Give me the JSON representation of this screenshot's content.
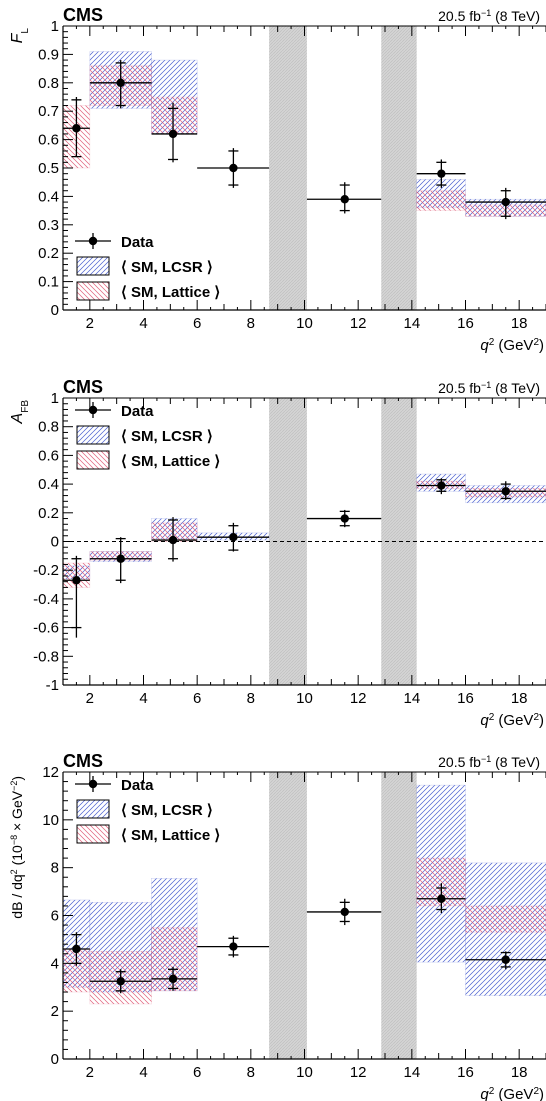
{
  "colors": {
    "data": "#000000",
    "lcsr": "#4a5fd0",
    "lattice": "#e0607a",
    "veto": "#c8c8c8",
    "frame": "#000000"
  },
  "chart_data": [
    {
      "type": "scatter",
      "id": "fl",
      "experiment": "CMS",
      "lumi": "20.5 fb",
      "lumi_exp": "−1",
      "energy": "(8 TeV)",
      "ylabel_main": "F",
      "ylabel_sub": "L",
      "xlabel_main": "q",
      "xlabel_sup": "2",
      "xlabel_unit": "(GeV",
      "xlabel_unit_sup": "2",
      "xlabel_close": ")",
      "xlim": [
        1,
        19
      ],
      "ylim": [
        0,
        1
      ],
      "x_ticks": [
        2,
        4,
        6,
        8,
        10,
        12,
        14,
        16,
        18
      ],
      "y_ticks": [
        0,
        0.1,
        0.2,
        0.3,
        0.4,
        0.5,
        0.6,
        0.7,
        0.8,
        0.9,
        1
      ],
      "y_tick_labels": [
        "0",
        "0.1",
        "0.2",
        "0.3",
        "0.4",
        "0.5",
        "0.6",
        "0.7",
        "0.8",
        "0.9",
        "1"
      ],
      "zero_line": false,
      "legend": {
        "position": "bottom-left",
        "entries": [
          "Data",
          "⟨ SM, LCSR ⟩",
          "⟨ SM, Lattice ⟩"
        ]
      },
      "veto_bands": [
        [
          8.68,
          10.09
        ],
        [
          12.86,
          14.18
        ]
      ],
      "data": [
        {
          "x": 1.5,
          "xlo": 1,
          "xhi": 2,
          "y": 0.64,
          "stat": [
            0.54,
            0.74
          ],
          "tot": [
            0.54,
            0.75
          ]
        },
        {
          "x": 3.15,
          "xlo": 2,
          "xhi": 4.3,
          "y": 0.8,
          "stat": [
            0.72,
            0.87
          ],
          "tot": [
            0.71,
            0.88
          ]
        },
        {
          "x": 5.1,
          "xlo": 4.3,
          "xhi": 6,
          "y": 0.62,
          "stat": [
            0.53,
            0.71
          ],
          "tot": [
            0.52,
            0.73
          ]
        },
        {
          "x": 7.35,
          "xlo": 6,
          "xhi": 8.68,
          "y": 0.5,
          "stat": [
            0.44,
            0.56
          ],
          "tot": [
            0.43,
            0.57
          ]
        },
        {
          "x": 11.5,
          "xlo": 10.09,
          "xhi": 12.86,
          "y": 0.39,
          "stat": [
            0.35,
            0.44
          ],
          "tot": [
            0.34,
            0.45
          ]
        },
        {
          "x": 15.1,
          "xlo": 14.18,
          "xhi": 16,
          "y": 0.48,
          "stat": [
            0.44,
            0.52
          ],
          "tot": [
            0.43,
            0.53
          ]
        },
        {
          "x": 17.5,
          "xlo": 16,
          "xhi": 19,
          "y": 0.38,
          "stat": [
            0.33,
            0.42
          ],
          "tot": [
            0.32,
            0.43
          ]
        }
      ],
      "lcsr": [
        {
          "x": [
            2,
            4.3
          ],
          "y": [
            0.71,
            0.91
          ]
        },
        {
          "x": [
            4.3,
            6
          ],
          "y": [
            0.62,
            0.88
          ]
        },
        {
          "x": [
            14.18,
            16
          ],
          "y": [
            0.36,
            0.46
          ]
        },
        {
          "x": [
            16,
            19
          ],
          "y": [
            0.33,
            0.39
          ]
        }
      ],
      "lattice": [
        {
          "x": [
            1,
            2
          ],
          "y": [
            0.5,
            0.72
          ]
        },
        {
          "x": [
            2,
            4.3
          ],
          "y": [
            0.72,
            0.86
          ]
        },
        {
          "x": [
            4.3,
            6
          ],
          "y": [
            0.62,
            0.75
          ]
        },
        {
          "x": [
            14.18,
            16
          ],
          "y": [
            0.35,
            0.42
          ]
        },
        {
          "x": [
            16,
            19
          ],
          "y": [
            0.33,
            0.37
          ]
        }
      ]
    },
    {
      "type": "scatter",
      "id": "afb",
      "experiment": "CMS",
      "lumi": "20.5 fb",
      "lumi_exp": "−1",
      "energy": "(8 TeV)",
      "ylabel_main": "A",
      "ylabel_sub": "FB",
      "xlabel_main": "q",
      "xlabel_sup": "2",
      "xlabel_unit": "(GeV",
      "xlabel_unit_sup": "2",
      "xlabel_close": ")",
      "xlim": [
        1,
        19
      ],
      "ylim": [
        -1,
        1
      ],
      "x_ticks": [
        2,
        4,
        6,
        8,
        10,
        12,
        14,
        16,
        18
      ],
      "y_ticks": [
        -1,
        -0.8,
        -0.6,
        -0.4,
        -0.2,
        0,
        0.2,
        0.4,
        0.6,
        0.8,
        1
      ],
      "y_tick_labels": [
        "-1",
        "-0.8",
        "-0.6",
        "-0.4",
        "-0.2",
        "0",
        "0.2",
        "0.4",
        "0.6",
        "0.8",
        "1"
      ],
      "zero_line": true,
      "legend": {
        "position": "top-left",
        "entries": [
          "Data",
          "⟨ SM, LCSR ⟩",
          "⟨ SM, Lattice ⟩"
        ]
      },
      "veto_bands": [
        [
          8.68,
          10.09
        ],
        [
          12.86,
          14.18
        ]
      ],
      "data": [
        {
          "x": 1.5,
          "xlo": 1,
          "xhi": 2,
          "y": -0.27,
          "stat": [
            -0.6,
            -0.12
          ],
          "tot": [
            -0.67,
            -0.1
          ]
        },
        {
          "x": 3.15,
          "xlo": 2,
          "xhi": 4.3,
          "y": -0.12,
          "stat": [
            -0.27,
            0.02
          ],
          "tot": [
            -0.29,
            0.03
          ]
        },
        {
          "x": 5.1,
          "xlo": 4.3,
          "xhi": 6,
          "y": 0.01,
          "stat": [
            -0.12,
            0.15
          ],
          "tot": [
            -0.14,
            0.17
          ]
        },
        {
          "x": 7.35,
          "xlo": 6,
          "xhi": 8.68,
          "y": 0.03,
          "stat": [
            -0.06,
            0.11
          ],
          "tot": [
            -0.07,
            0.13
          ]
        },
        {
          "x": 11.5,
          "xlo": 10.09,
          "xhi": 12.86,
          "y": 0.16,
          "stat": [
            0.11,
            0.21
          ],
          "tot": [
            0.1,
            0.22
          ]
        },
        {
          "x": 15.1,
          "xlo": 14.18,
          "xhi": 16,
          "y": 0.39,
          "stat": [
            0.35,
            0.43
          ],
          "tot": [
            0.33,
            0.44
          ]
        },
        {
          "x": 17.5,
          "xlo": 16,
          "xhi": 19,
          "y": 0.35,
          "stat": [
            0.3,
            0.4
          ],
          "tot": [
            0.29,
            0.42
          ]
        }
      ],
      "lcsr": [
        {
          "x": [
            1,
            2
          ],
          "y": [
            -0.26,
            -0.17
          ]
        },
        {
          "x": [
            2,
            4.3
          ],
          "y": [
            -0.14,
            -0.07
          ]
        },
        {
          "x": [
            4.3,
            6
          ],
          "y": [
            0.02,
            0.16
          ]
        },
        {
          "x": [
            6,
            8.68
          ],
          "y": [
            0.01,
            0.06
          ]
        },
        {
          "x": [
            14.18,
            16
          ],
          "y": [
            0.35,
            0.47
          ]
        },
        {
          "x": [
            16,
            19
          ],
          "y": [
            0.27,
            0.39
          ]
        }
      ],
      "lattice": [
        {
          "x": [
            1,
            2
          ],
          "y": [
            -0.32,
            -0.15
          ]
        },
        {
          "x": [
            2,
            4.3
          ],
          "y": [
            -0.13,
            -0.07
          ]
        },
        {
          "x": [
            4.3,
            6
          ],
          "y": [
            0.0,
            0.13
          ]
        },
        {
          "x": [
            14.18,
            16
          ],
          "y": [
            0.37,
            0.42
          ]
        },
        {
          "x": [
            16,
            19
          ],
          "y": [
            0.31,
            0.37
          ]
        }
      ]
    },
    {
      "type": "scatter",
      "id": "dbdq2",
      "experiment": "CMS",
      "lumi": "20.5 fb",
      "lumi_exp": "−1",
      "energy": "(8 TeV)",
      "ylabel_main": "dB / dq",
      "ylabel_sup": "2",
      "ylabel_unit": " (10",
      "ylabel_unit_sup": "−8",
      "ylabel_unit_rest": " × GeV",
      "ylabel_unit_sup2": "−2",
      "ylabel_close": ")",
      "xlabel_main": "q",
      "xlabel_sup": "2",
      "xlabel_unit": "(GeV",
      "xlabel_unit_sup": "2",
      "xlabel_close": ")",
      "xlim": [
        1,
        19
      ],
      "ylim": [
        0,
        12
      ],
      "x_ticks": [
        2,
        4,
        6,
        8,
        10,
        12,
        14,
        16,
        18
      ],
      "y_ticks": [
        0,
        2,
        4,
        6,
        8,
        10,
        12
      ],
      "y_tick_labels": [
        "0",
        "2",
        "4",
        "6",
        "8",
        "10",
        "12"
      ],
      "zero_line": false,
      "legend": {
        "position": "top-left",
        "entries": [
          "Data",
          "⟨ SM, LCSR ⟩",
          "⟨ SM, Lattice ⟩"
        ]
      },
      "veto_bands": [
        [
          8.68,
          10.09
        ],
        [
          12.86,
          14.18
        ]
      ],
      "data": [
        {
          "x": 1.5,
          "xlo": 1,
          "xhi": 2,
          "y": 4.6,
          "stat": [
            4.0,
            5.2
          ],
          "tot": [
            3.9,
            5.3
          ]
        },
        {
          "x": 3.15,
          "xlo": 2,
          "xhi": 4.3,
          "y": 3.25,
          "stat": [
            2.85,
            3.65
          ],
          "tot": [
            2.75,
            3.75
          ]
        },
        {
          "x": 5.1,
          "xlo": 4.3,
          "xhi": 6,
          "y": 3.35,
          "stat": [
            2.95,
            3.75
          ],
          "tot": [
            2.85,
            3.85
          ]
        },
        {
          "x": 7.35,
          "xlo": 6,
          "xhi": 8.68,
          "y": 4.7,
          "stat": [
            4.35,
            5.05
          ],
          "tot": [
            4.25,
            5.15
          ]
        },
        {
          "x": 11.5,
          "xlo": 10.09,
          "xhi": 12.86,
          "y": 6.15,
          "stat": [
            5.75,
            6.55
          ],
          "tot": [
            5.6,
            6.7
          ]
        },
        {
          "x": 15.1,
          "xlo": 14.18,
          "xhi": 16,
          "y": 6.7,
          "stat": [
            6.25,
            7.15
          ],
          "tot": [
            6.1,
            7.35
          ]
        },
        {
          "x": 17.5,
          "xlo": 16,
          "xhi": 19,
          "y": 4.15,
          "stat": [
            3.85,
            4.45
          ],
          "tot": [
            3.75,
            4.5
          ]
        }
      ],
      "lcsr": [
        {
          "x": [
            1,
            2
          ],
          "y": [
            3.0,
            6.65
          ]
        },
        {
          "x": [
            2,
            4.3
          ],
          "y": [
            2.8,
            6.55
          ]
        },
        {
          "x": [
            4.3,
            6
          ],
          "y": [
            2.85,
            7.55
          ]
        },
        {
          "x": [
            14.18,
            16
          ],
          "y": [
            4.05,
            11.45
          ]
        },
        {
          "x": [
            16,
            19
          ],
          "y": [
            2.65,
            8.2
          ]
        }
      ],
      "lattice": [
        {
          "x": [
            1,
            2
          ],
          "y": [
            2.8,
            4.6
          ]
        },
        {
          "x": [
            2,
            4.3
          ],
          "y": [
            2.3,
            4.5
          ]
        },
        {
          "x": [
            4.3,
            6
          ],
          "y": [
            2.85,
            5.5
          ]
        },
        {
          "x": [
            14.18,
            16
          ],
          "y": [
            6.4,
            8.4
          ]
        },
        {
          "x": [
            16,
            19
          ],
          "y": [
            5.3,
            6.4
          ]
        }
      ]
    }
  ]
}
